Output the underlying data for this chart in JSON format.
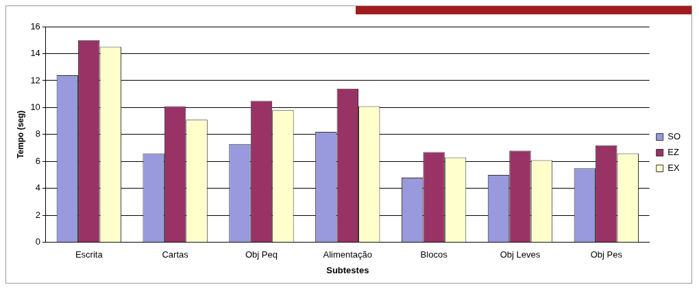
{
  "chart_data": {
    "type": "bar",
    "xlabel": "Subtestes",
    "ylabel": "Tempo (seg)",
    "categories": [
      "Escrita",
      "Cartas",
      "Obj Peq",
      "Alimentação",
      "Blocos",
      "Obj Leves",
      "Obj Pes"
    ],
    "series": [
      {
        "name": "SO",
        "color": "#9999dd",
        "values": [
          12.4,
          6.6,
          7.3,
          8.2,
          4.8,
          5.0,
          5.5
        ]
      },
      {
        "name": "EZ",
        "color": "#993366",
        "values": [
          15.0,
          10.1,
          10.5,
          11.4,
          6.7,
          6.8,
          7.2
        ]
      },
      {
        "name": "EX",
        "color": "#ffffcc",
        "values": [
          14.5,
          9.1,
          9.8,
          10.1,
          6.3,
          6.1,
          6.6
        ]
      }
    ],
    "ylim": [
      0,
      16
    ],
    "yticks": [
      0,
      2,
      4,
      6,
      8,
      10,
      12,
      14,
      16
    ],
    "grid": "y",
    "legend": "right"
  }
}
